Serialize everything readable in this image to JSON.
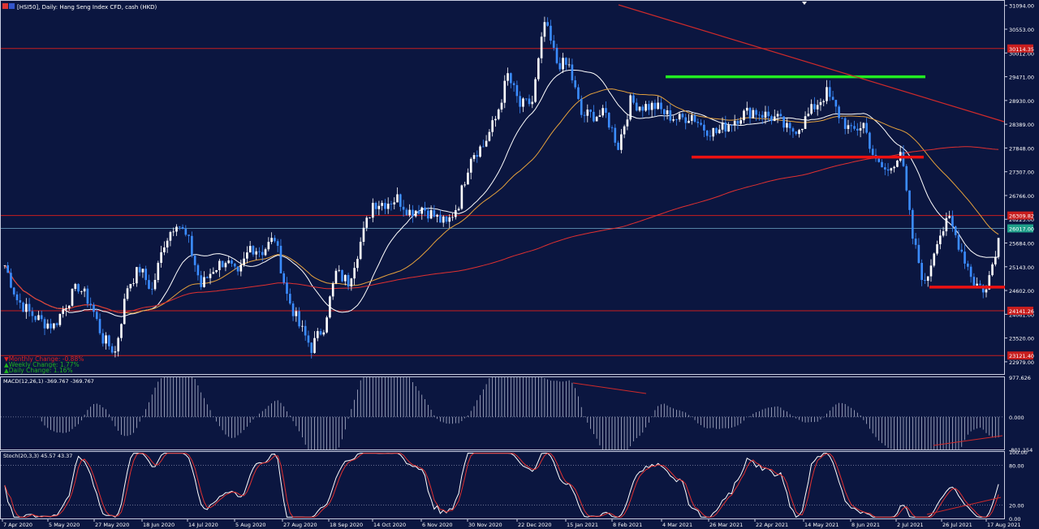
{
  "header": {
    "title": "[HSI50], Daily:  Hang Seng Index CFD, cash (HKD)"
  },
  "stats": {
    "monthly": "▼Monthly Change: -0.88%",
    "weekly": "▲Weekly Change: 1.77%",
    "daily": "▲Daily Change: 1.16%"
  },
  "indicators": {
    "macd_label": "MACD(12,26,1) -369.767 -369.767",
    "stoch_label": "Stoch(20,3,3) 45.57 43.37"
  },
  "colors": {
    "background": "#0b1640",
    "border": "#c8cce0",
    "bull_candle": "#ffffff",
    "bear_candle": "#3b8cff",
    "ma_fast": "#ffffff",
    "ma_mid": "#e6a23c",
    "ma_slow": "#e03030",
    "level_line": "#c81e1e",
    "green_zone": "#22ee22",
    "red_zone": "#ee1111",
    "trend_line": "#d02a2a",
    "price_tag": "#1fa08a"
  },
  "chart_data": [
    {
      "type": "candlestick",
      "title": "[HSI50], Daily:  Hang Seng Index CFD, cash (HKD)",
      "x_tick_labels": [
        "7 Apr 2020",
        "5 May 2020",
        "27 May 2020",
        "18 Jun 2020",
        "14 Jul 2020",
        "5 Aug 2020",
        "27 Aug 2020",
        "18 Sep 2020",
        "14 Oct 2020",
        "6 Nov 2020",
        "30 Nov 2020",
        "22 Dec 2020",
        "15 Jan 2021",
        "8 Feb 2021",
        "4 Mar 2021",
        "26 Mar 2021",
        "22 Apr 2021",
        "14 May 2021",
        "8 Jun 2021",
        "2 Jul 2021",
        "26 Jul 2021",
        "17 Aug 2021"
      ],
      "y_tick_labels": [
        "31094.00",
        "30553.00",
        "30012.00",
        "29471.00",
        "28930.00",
        "28389.00",
        "27848.00",
        "27307.00",
        "26766.00",
        "26225.00",
        "25684.00",
        "25143.00",
        "24602.00",
        "24061.00",
        "23520.00",
        "22979.00"
      ],
      "ylim": [
        22700,
        31200
      ],
      "price_tags": [
        "30114.35",
        "26309.82",
        "26017.00",
        "24141.26",
        "23121.40"
      ],
      "horizontal_levels": [
        30114.35,
        26309.82,
        24141.26,
        23121.4
      ],
      "current_price": 26017.0,
      "green_zone_level": 29471,
      "red_zone_upper": 27640,
      "red_zone_lower": 24680,
      "close_series": [
        25180,
        24400,
        24100,
        23900,
        23800,
        24300,
        24700,
        24300,
        23500,
        23200,
        24700,
        25100,
        24600,
        25700,
        26200,
        25700,
        24700,
        25100,
        25300,
        24900,
        25600,
        25500,
        25800,
        24500,
        23800,
        23300,
        23800,
        25000,
        24800,
        25700,
        26600,
        26600,
        26700,
        26400,
        26500,
        26300,
        26100,
        26600,
        27700,
        27900,
        28500,
        29500,
        28800,
        28900,
        30700,
        29800,
        29700,
        28600,
        28600,
        28600,
        27900,
        28900,
        28800,
        28800,
        28600,
        28500,
        28600,
        28300,
        28200,
        28400,
        28600,
        28700,
        28600,
        28500,
        28200,
        28400,
        28800,
        29100,
        28600,
        28200,
        28400,
        27500,
        27300,
        27800,
        25800,
        24700,
        25800,
        26200,
        25500,
        24800,
        24600,
        25800
      ]
    },
    {
      "type": "bar",
      "title": "MACD(12,26,1) -369.767 -369.767",
      "series_name": "MACD",
      "y_tick_labels": [
        "977.626",
        "0.000",
        "-801.154"
      ],
      "ylim": [
        -801.154,
        977.626
      ],
      "value": -369.767
    },
    {
      "type": "line",
      "title": "Stoch(20,3,3) 45.57 43.37",
      "y_tick_labels": [
        "100.00",
        "80.00",
        "20.00",
        "0.00"
      ],
      "ylim": [
        0,
        100
      ],
      "main": 45.57,
      "signal": 43.37
    }
  ]
}
